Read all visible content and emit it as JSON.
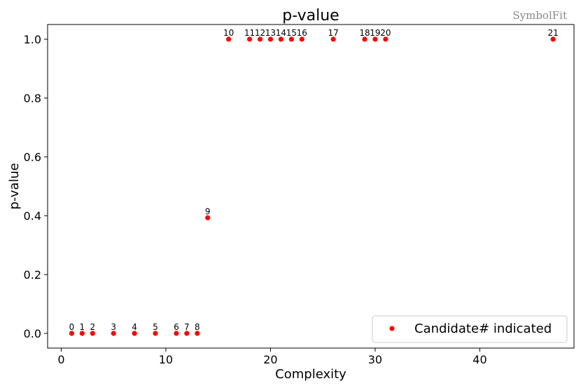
{
  "watermark": "SymbolFit",
  "chart_data": {
    "type": "scatter",
    "title": "p-value",
    "xlabel": "Complexity",
    "ylabel": "p-value",
    "xlim": [
      -1.3,
      49.0
    ],
    "ylim": [
      -0.05,
      1.05
    ],
    "xticks": [
      0,
      10,
      20,
      30,
      40
    ],
    "yticks": [
      0.0,
      0.2,
      0.4,
      0.6,
      0.8,
      1.0
    ],
    "ytick_labels": [
      "0.0",
      "0.2",
      "0.4",
      "0.6",
      "0.8",
      "1.0"
    ],
    "grid": false,
    "legend": {
      "position": "bottom-right",
      "entry": "Candidate# indicated"
    },
    "marker_color": "#ff0000",
    "points": [
      {
        "label": "0",
        "x": 1,
        "y": 0.0
      },
      {
        "label": "1",
        "x": 2,
        "y": 0.0
      },
      {
        "label": "2",
        "x": 3,
        "y": 0.0
      },
      {
        "label": "3",
        "x": 5,
        "y": 0.0
      },
      {
        "label": "4",
        "x": 7,
        "y": 0.0
      },
      {
        "label": "5",
        "x": 9,
        "y": 0.0
      },
      {
        "label": "6",
        "x": 11,
        "y": 0.0
      },
      {
        "label": "7",
        "x": 12,
        "y": 0.0
      },
      {
        "label": "8",
        "x": 13,
        "y": 0.0
      },
      {
        "label": "9",
        "x": 14,
        "y": 0.393
      },
      {
        "label": "10",
        "x": 16,
        "y": 1.0
      },
      {
        "label": "11",
        "x": 18,
        "y": 1.0
      },
      {
        "label": "12",
        "x": 19,
        "y": 1.0
      },
      {
        "label": "13",
        "x": 20,
        "y": 1.0
      },
      {
        "label": "14",
        "x": 21,
        "y": 1.0
      },
      {
        "label": "15",
        "x": 22,
        "y": 1.0
      },
      {
        "label": "16",
        "x": 23,
        "y": 1.0
      },
      {
        "label": "17",
        "x": 26,
        "y": 1.0
      },
      {
        "label": "18",
        "x": 29,
        "y": 1.0
      },
      {
        "label": "19",
        "x": 30,
        "y": 1.0
      },
      {
        "label": "20",
        "x": 31,
        "y": 1.0
      },
      {
        "label": "21",
        "x": 47,
        "y": 1.0
      }
    ]
  }
}
